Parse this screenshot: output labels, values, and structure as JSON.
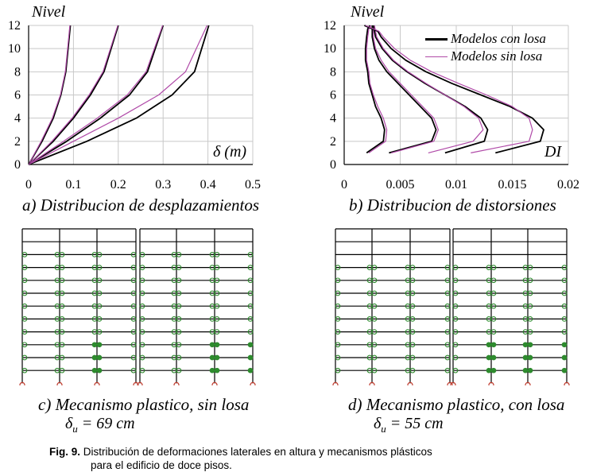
{
  "chart_data": [
    {
      "type": "line",
      "panel": "a",
      "ylabel": "Nivel",
      "xlabel": "δ (m)",
      "caption": "a) Distribucion de desplazamientos",
      "xlim": [
        0,
        0.5
      ],
      "ylim": [
        0,
        12
      ],
      "xticks": [
        "0",
        "0.1",
        "0.2",
        "0.3",
        "0.4",
        "0.5"
      ],
      "yticks": [
        "0",
        "2",
        "4",
        "6",
        "8",
        "10",
        "12"
      ],
      "series": [
        {
          "name": "Modelos con losa",
          "group": 1,
          "x": [
            0,
            0.03,
            0.055,
            0.072,
            0.083,
            0.093
          ],
          "y": [
            0,
            2,
            4,
            6,
            8,
            12
          ]
        },
        {
          "name": "Modelos sin losa",
          "group": 1,
          "x": [
            0,
            0.028,
            0.053,
            0.071,
            0.082,
            0.092
          ],
          "y": [
            0,
            2,
            4,
            6,
            8,
            12
          ]
        },
        {
          "name": "Modelos con losa",
          "group": 2,
          "x": [
            0,
            0.055,
            0.1,
            0.138,
            0.168,
            0.2
          ],
          "y": [
            0,
            2,
            4,
            6,
            8,
            12
          ]
        },
        {
          "name": "Modelos sin losa",
          "group": 2,
          "x": [
            0,
            0.052,
            0.097,
            0.135,
            0.166,
            0.199
          ],
          "y": [
            0,
            2,
            4,
            6,
            8,
            12
          ]
        },
        {
          "name": "Modelos con losa",
          "group": 3,
          "x": [
            0,
            0.085,
            0.16,
            0.225,
            0.265,
            0.3
          ],
          "y": [
            0,
            2,
            4,
            6,
            8,
            12
          ]
        },
        {
          "name": "Modelos sin losa",
          "group": 3,
          "x": [
            0,
            0.078,
            0.153,
            0.22,
            0.262,
            0.299
          ],
          "y": [
            0,
            2,
            4,
            6,
            8,
            12
          ]
        },
        {
          "name": "Modelos con losa",
          "group": 4,
          "x": [
            0,
            0.13,
            0.24,
            0.32,
            0.37,
            0.402
          ],
          "y": [
            0,
            2,
            4,
            6,
            8,
            12
          ]
        },
        {
          "name": "Modelos sin losa",
          "group": 4,
          "x": [
            0,
            0.1,
            0.2,
            0.29,
            0.35,
            0.398
          ],
          "y": [
            0,
            2,
            4,
            6,
            8,
            12
          ]
        }
      ]
    },
    {
      "type": "line",
      "panel": "b",
      "ylabel": "Nivel",
      "xlabel": "DI",
      "caption": "b) Distribucion de distorsiones",
      "xlim": [
        0,
        0.02
      ],
      "ylim": [
        0,
        12
      ],
      "xticks": [
        "0",
        "0.005",
        "0.01",
        "0.015",
        "0.02"
      ],
      "yticks": [
        "0",
        "2",
        "4",
        "6",
        "8",
        "10",
        "12"
      ],
      "legend": {
        "placement": "top-right",
        "entries": [
          "Modelos con losa",
          "Modelos sin losa"
        ]
      },
      "series": [
        {
          "name": "Modelos con losa",
          "group": 1,
          "x": [
            0.002,
            0.0035,
            0.0036,
            0.0033,
            0.0028,
            0.0025,
            0.0022,
            0.0021,
            0.0019,
            0.0019,
            0.002,
            0.0021,
            0.0023
          ],
          "y": [
            1,
            2,
            3,
            4,
            5,
            6,
            7,
            8,
            9,
            10,
            11,
            11.7,
            12
          ]
        },
        {
          "name": "Modelos sin losa",
          "group": 1,
          "x": [
            0.0022,
            0.0037,
            0.0038,
            0.0035,
            0.003,
            0.0026,
            0.0023,
            0.0022,
            0.002,
            0.002,
            0.0021,
            0.0022,
            0.0024
          ],
          "y": [
            1,
            2,
            3,
            4,
            5,
            6,
            7,
            8,
            9,
            10,
            11,
            11.7,
            12
          ]
        },
        {
          "name": "Modelos con losa",
          "group": 2,
          "x": [
            0.004,
            0.0078,
            0.0082,
            0.0078,
            0.0068,
            0.0058,
            0.0048,
            0.0038,
            0.0031,
            0.0027,
            0.0025,
            0.0025
          ],
          "y": [
            1,
            2,
            3,
            4,
            5,
            6,
            7,
            8,
            9,
            10,
            11,
            12
          ]
        },
        {
          "name": "Modelos sin losa",
          "group": 2,
          "x": [
            0.0042,
            0.008,
            0.0084,
            0.008,
            0.007,
            0.006,
            0.005,
            0.004,
            0.0033,
            0.0028,
            0.0026,
            0.0026
          ],
          "y": [
            1,
            2,
            3,
            4,
            5,
            6,
            7,
            8,
            9,
            10,
            11,
            12
          ]
        },
        {
          "name": "Modelos con losa",
          "group": 3,
          "x": [
            0.009,
            0.0125,
            0.0128,
            0.0122,
            0.0108,
            0.009,
            0.0072,
            0.0056,
            0.0043,
            0.0034,
            0.0028,
            0.0026
          ],
          "y": [
            1,
            2,
            3,
            4,
            5,
            6,
            7,
            8,
            9,
            10,
            11,
            12
          ]
        },
        {
          "name": "Modelos sin losa",
          "group": 3,
          "x": [
            0.0075,
            0.0115,
            0.0124,
            0.012,
            0.0107,
            0.009,
            0.0073,
            0.0057,
            0.0044,
            0.0035,
            0.0029,
            0.0027
          ],
          "y": [
            1,
            2,
            3,
            4,
            5,
            6,
            7,
            8,
            9,
            10,
            11,
            12
          ]
        },
        {
          "name": "Modelos con losa",
          "group": 4,
          "x": [
            0.0135,
            0.0175,
            0.0178,
            0.0168,
            0.0148,
            0.0122,
            0.0096,
            0.0073,
            0.0055,
            0.0042,
            0.0033,
            0.003,
            0.0018
          ],
          "y": [
            1,
            2,
            3,
            4,
            5,
            6,
            7,
            8,
            9,
            10,
            11,
            11.5,
            12
          ]
        },
        {
          "name": "Modelos sin losa",
          "group": 4,
          "x": [
            0.0113,
            0.0165,
            0.0168,
            0.0165,
            0.015,
            0.0127,
            0.0102,
            0.0078,
            0.0059,
            0.0045,
            0.0035,
            0.0031,
            0.0019
          ],
          "y": [
            1,
            2,
            3,
            4,
            5,
            6,
            7,
            8,
            9,
            10,
            11,
            11.5,
            12
          ]
        }
      ]
    }
  ],
  "mechanisms": {
    "c": {
      "caption": "c)  Mecanismo plastico, sin losa",
      "delta_sym": "δ",
      "delta_sub": "u",
      "delta_rest": " = 69 cm"
    },
    "d": {
      "caption": "d)  Mecanismo plastico, con losa",
      "delta_sym": "δ",
      "delta_sub": "u",
      "delta_rest": " = 55 cm"
    }
  },
  "figure_caption": {
    "label": "Fig. 9.",
    "text": " Distribución de deformaciones laterales en altura y mecanismos plásticos",
    "line2": "para el edificio de doce pisos."
  },
  "colors": {
    "con_losa": "#000000",
    "sin_losa": "#b04aa8",
    "grid": "#c8c8c8",
    "hinge": "#2e8b2e",
    "base_hinge": "#c0392b"
  }
}
